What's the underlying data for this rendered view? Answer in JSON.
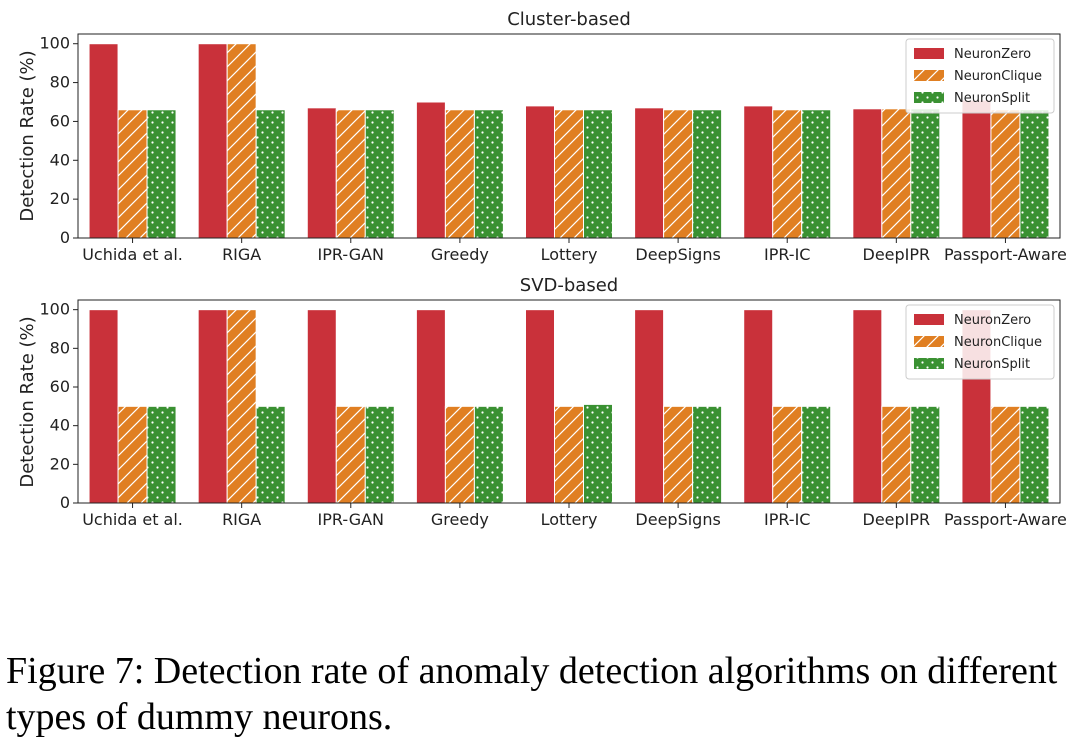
{
  "chart_data": [
    {
      "type": "bar",
      "title": "Cluster-based",
      "xlabel": "",
      "ylabel": "Detection Rate (%)",
      "ylim": [
        0,
        105
      ],
      "yticks": [
        0,
        20,
        40,
        60,
        80,
        100
      ],
      "legend": "top-right",
      "grid": false,
      "categories": [
        "Uchida et al.",
        "RIGA",
        "IPR-GAN",
        "Greedy",
        "Lottery",
        "DeepSigns",
        "IPR-IC",
        "DeepIPR",
        "Passport-Aware"
      ],
      "series": [
        {
          "name": "NeuronZero",
          "values": [
            100,
            100,
            67,
            70,
            68,
            67,
            68,
            66.5,
            71
          ]
        },
        {
          "name": "NeuronClique",
          "values": [
            66,
            100,
            66,
            66,
            66,
            66,
            66,
            66.5,
            66
          ]
        },
        {
          "name": "NeuronSplit",
          "values": [
            66,
            66,
            66,
            66,
            66,
            66,
            66,
            66.5,
            66
          ]
        }
      ]
    },
    {
      "type": "bar",
      "title": "SVD-based",
      "xlabel": "",
      "ylabel": "Detection Rate (%)",
      "ylim": [
        0,
        105
      ],
      "yticks": [
        0,
        20,
        40,
        60,
        80,
        100
      ],
      "legend": "top-right",
      "grid": false,
      "categories": [
        "Uchida et al.",
        "RIGA",
        "IPR-GAN",
        "Greedy",
        "Lottery",
        "DeepSigns",
        "IPR-IC",
        "DeepIPR",
        "Passport-Aware"
      ],
      "series": [
        {
          "name": "NeuronZero",
          "values": [
            100,
            100,
            100,
            100,
            100,
            100,
            100,
            100,
            100
          ]
        },
        {
          "name": "NeuronClique",
          "values": [
            50,
            100,
            50,
            50,
            50,
            50,
            50,
            50,
            50
          ]
        },
        {
          "name": "NeuronSplit",
          "values": [
            50,
            50,
            50,
            50,
            51,
            50,
            50,
            50,
            50
          ]
        }
      ]
    }
  ],
  "colors": {
    "NeuronZero": "#c9313a",
    "NeuronClique": "#e07f22",
    "NeuronSplit": "#3a9132"
  },
  "patterns": {
    "NeuronZero": "solid",
    "NeuronClique": "hatch-diagonal",
    "NeuronSplit": "dots"
  },
  "caption": "Figure 7: Detection rate of anomaly detection algorithms on different types of dummy neurons."
}
